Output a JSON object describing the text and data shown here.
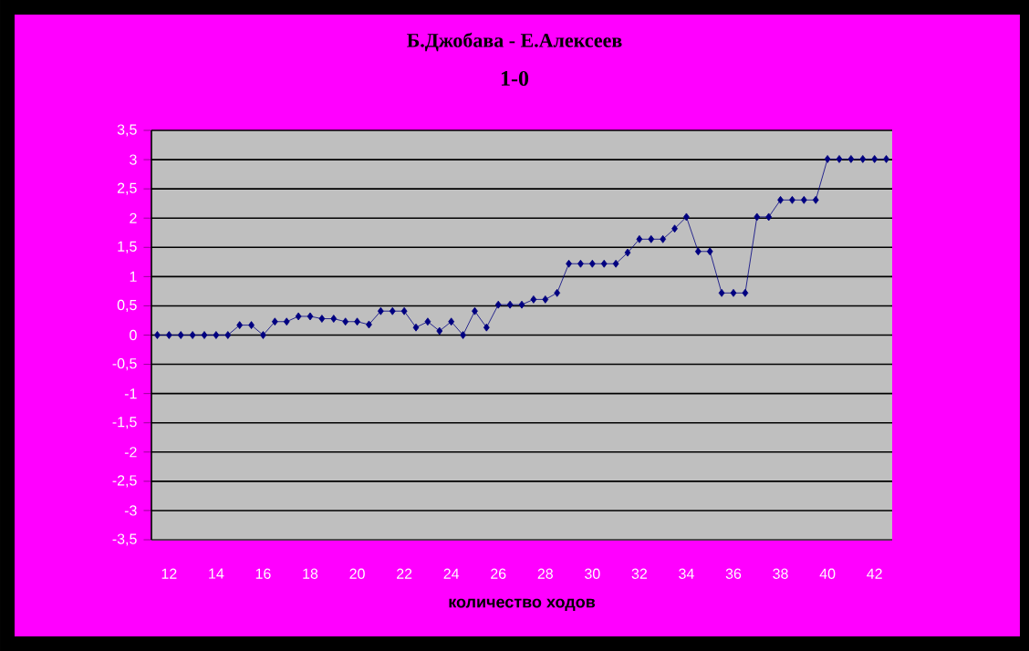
{
  "chart_data": {
    "type": "line",
    "title": "Б.Джобава - Е.Алексеев",
    "subtitle": "1-0",
    "xlabel": "количество ходов",
    "x": [
      11.5,
      12,
      12.5,
      13,
      13.5,
      14,
      14.5,
      15,
      15.5,
      16,
      16.5,
      17,
      17.5,
      18,
      18.5,
      19,
      19.5,
      20,
      20.5,
      21,
      21.5,
      22,
      22.5,
      23,
      23.5,
      24,
      24.5,
      25,
      25.5,
      26,
      26.5,
      27,
      27.5,
      28,
      28.5,
      29,
      29.5,
      30,
      30.5,
      31,
      31.5,
      32,
      32.5,
      33,
      33.5,
      34,
      34.5,
      35,
      35.5,
      36,
      36.5,
      37,
      37.5,
      38,
      38.5,
      39,
      39.5,
      40,
      40.5,
      41,
      41.5,
      42,
      42.5
    ],
    "series": [
      {
        "color": "#000080",
        "values": [
          0,
          0,
          0,
          0,
          0,
          0,
          0,
          0.17,
          0.17,
          0,
          0.23,
          0.23,
          0.32,
          0.32,
          0.28,
          0.28,
          0.23,
          0.23,
          0.18,
          0.41,
          0.41,
          0.41,
          0.13,
          0.23,
          0.07,
          0.23,
          0,
          0.41,
          0.13,
          0.52,
          0.52,
          0.52,
          0.61,
          0.61,
          0.72,
          1.22,
          1.22,
          1.22,
          1.22,
          1.22,
          1.41,
          1.64,
          1.64,
          1.64,
          1.82,
          2.02,
          1.43,
          1.43,
          0.72,
          0.72,
          0.72,
          2.02,
          2.02,
          2.31,
          2.31,
          2.31,
          2.31,
          3.01,
          3.01,
          3.01,
          3.01,
          3.01,
          3.01
        ]
      }
    ],
    "xlim": [
      11.25,
      42.75
    ],
    "xticks": [
      12,
      14,
      16,
      18,
      20,
      22,
      24,
      26,
      28,
      30,
      32,
      34,
      36,
      38,
      40,
      42
    ],
    "ylim": [
      -3.5,
      3.5
    ],
    "yticks": [
      {
        "value": -3.5,
        "label": "-3,5"
      },
      {
        "value": -3,
        "label": "-3"
      },
      {
        "value": -2.5,
        "label": "-2,5"
      },
      {
        "value": -2,
        "label": "-2"
      },
      {
        "value": -1.5,
        "label": "-1,5"
      },
      {
        "value": -1,
        "label": "-1"
      },
      {
        "value": -0.5,
        "label": "-0,5"
      },
      {
        "value": 0,
        "label": "0"
      },
      {
        "value": 0.5,
        "label": "0,5"
      },
      {
        "value": 1,
        "label": "1"
      },
      {
        "value": 1.5,
        "label": "1,5"
      },
      {
        "value": 2,
        "label": "2"
      },
      {
        "value": 2.5,
        "label": "2,5"
      },
      {
        "value": 3,
        "label": "3"
      },
      {
        "value": 3.5,
        "label": "3,5"
      }
    ],
    "grid": "y",
    "marker": "diamond",
    "line_style": "solid"
  }
}
